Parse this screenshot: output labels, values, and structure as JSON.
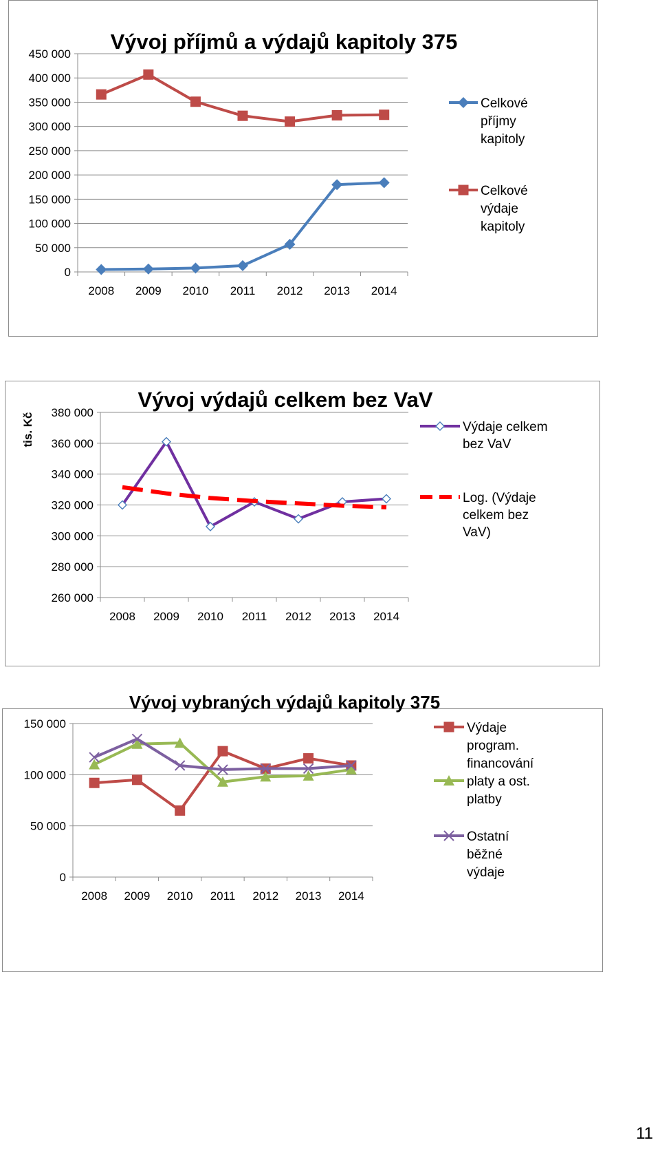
{
  "page": {
    "number": "11"
  },
  "chart_data": [
    {
      "type": "line",
      "title": "Vývoj příjmů a výdajů kapitoly 375",
      "ylabel": "",
      "xlabel": "",
      "categories": [
        "2008",
        "2009",
        "2010",
        "2011",
        "2012",
        "2013",
        "2014"
      ],
      "ylim": [
        0,
        450000
      ],
      "yticks": [
        0,
        50000,
        100000,
        150000,
        200000,
        250000,
        300000,
        350000,
        400000,
        450000
      ],
      "ytick_labels": [
        "0",
        "50 000",
        "100 000",
        "150 000",
        "200 000",
        "250 000",
        "300 000",
        "350 000",
        "400 000",
        "450 000"
      ],
      "grid": true,
      "legend_position": "right",
      "series": [
        {
          "name": "Celkové příjmy kapitoly",
          "legend_lines": [
            "Celkové",
            "příjmy",
            "kapitoly"
          ],
          "color": "#4a7ebb",
          "marker": "diamond-filled",
          "values": [
            5000,
            6000,
            8000,
            13000,
            57000,
            180000,
            184000
          ]
        },
        {
          "name": "Celkové výdaje kapitoly",
          "legend_lines": [
            "Celkové",
            "výdaje",
            "kapitoly"
          ],
          "color": "#be4b48",
          "marker": "square-filled",
          "values": [
            366000,
            407000,
            351000,
            322000,
            310000,
            323000,
            324000
          ]
        }
      ]
    },
    {
      "type": "line",
      "title": "Vývoj výdajů celkem bez VaV",
      "ylabel": "tis. Kč",
      "xlabel": "",
      "categories": [
        "2008",
        "2009",
        "2010",
        "2011",
        "2012",
        "2013",
        "2014"
      ],
      "ylim": [
        260000,
        380000
      ],
      "yticks": [
        260000,
        280000,
        300000,
        320000,
        340000,
        360000,
        380000
      ],
      "ytick_labels": [
        "260 000",
        "280 000",
        "300 000",
        "320 000",
        "340 000",
        "360 000",
        "380 000"
      ],
      "grid": true,
      "legend_position": "right",
      "series": [
        {
          "name": "Výdaje celkem bez VaV",
          "legend_lines": [
            "Výdaje celkem",
            "bez VaV"
          ],
          "color": "#7030a0",
          "marker": "diamond-open",
          "values": [
            320000,
            361000,
            306000,
            322000,
            311000,
            322000,
            324000
          ]
        },
        {
          "name": "Log. (Výdaje celkem bez VaV)",
          "legend_lines": [
            "Log. (Výdaje",
            "celkem bez",
            "VaV)"
          ],
          "color": "#ff0000",
          "marker": "none",
          "dashed": true,
          "values": [
            331500,
            327500,
            324500,
            322500,
            321000,
            319500,
            318500
          ]
        }
      ]
    },
    {
      "type": "line",
      "title": "Vývoj vybraných výdajů kapitoly 375",
      "ylabel": "",
      "xlabel": "",
      "categories": [
        "2008",
        "2009",
        "2010",
        "2011",
        "2012",
        "2013",
        "2014"
      ],
      "ylim": [
        0,
        150000
      ],
      "yticks": [
        0,
        50000,
        100000,
        150000
      ],
      "ytick_labels": [
        "0",
        "50 000",
        "100 000",
        "150 000"
      ],
      "grid": true,
      "legend_position": "right",
      "series": [
        {
          "name": "Výdaje program. financování",
          "legend_lines": [
            "Výdaje",
            "program.",
            "financování"
          ],
          "color": "#be4b48",
          "marker": "square-filled",
          "values": [
            92000,
            95000,
            65000,
            123000,
            106000,
            116000,
            109000
          ]
        },
        {
          "name": "platy a ost. platby",
          "legend_lines": [
            "platy a ost.",
            "platby"
          ],
          "color": "#98b954",
          "marker": "triangle-filled",
          "values": [
            110000,
            130000,
            131000,
            93000,
            98000,
            99000,
            105000
          ]
        },
        {
          "name": "Ostatní běžné výdaje",
          "legend_lines": [
            "Ostatní",
            "běžné",
            "výdaje"
          ],
          "color": "#7d60a0",
          "marker": "x",
          "values": [
            117000,
            135000,
            109000,
            105000,
            106000,
            106000,
            109000
          ]
        }
      ]
    }
  ]
}
